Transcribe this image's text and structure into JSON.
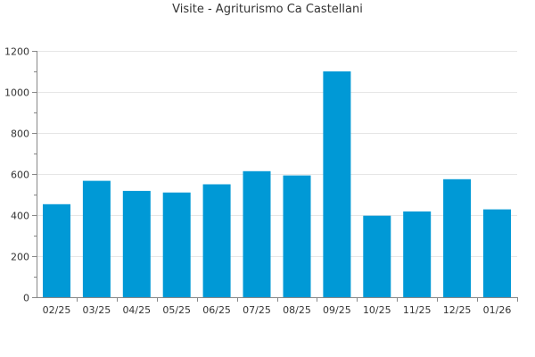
{
  "chart_data": {
    "type": "bar",
    "title": "Visite - Agriturismo Ca Castellani",
    "xlabel": "",
    "ylabel": "",
    "categories": [
      "02/25",
      "03/25",
      "04/25",
      "05/25",
      "06/25",
      "07/25",
      "08/25",
      "09/25",
      "10/25",
      "11/25",
      "12/25",
      "01/26"
    ],
    "values": [
      453,
      567,
      518,
      510,
      550,
      614,
      593,
      1100,
      397,
      418,
      575,
      428
    ],
    "ylim": [
      0,
      1200
    ],
    "yticks": [
      0,
      200,
      400,
      600,
      800,
      1000,
      1200
    ],
    "grid": true,
    "legend": "none",
    "bar_color": "#0099d6"
  }
}
